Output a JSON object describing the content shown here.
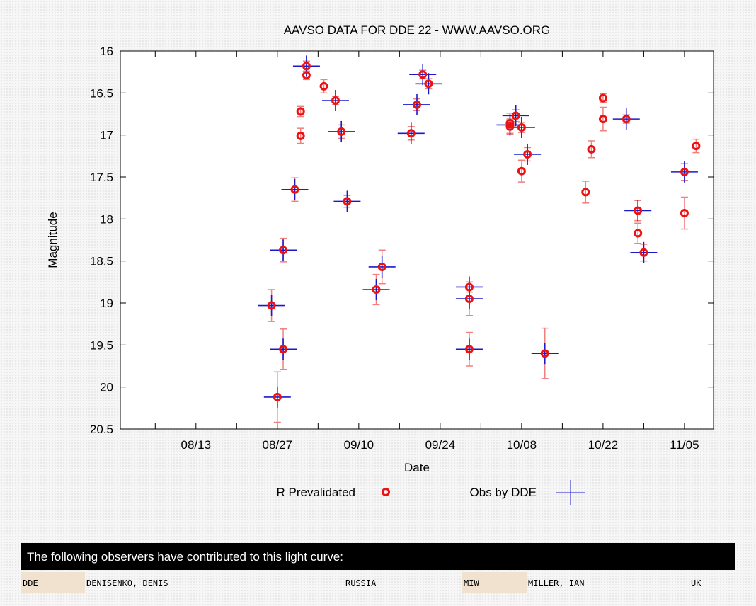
{
  "chart_data": {
    "type": "scatter",
    "title": "AAVSO DATA FOR DDE 22 - WWW.AAVSO.ORG",
    "xlabel": "Date",
    "ylabel": "Magnitude",
    "y_inverted": true,
    "ylim": [
      16,
      20.5
    ],
    "yticks": [
      "16",
      "16.5",
      "17",
      "17.5",
      "18",
      "18.5",
      "19",
      "19.5",
      "20",
      "20.5"
    ],
    "xlim": [
      "2012-07-31",
      "2012-11-10"
    ],
    "xticks": [
      "08/13",
      "08/27",
      "09/10",
      "09/24",
      "10/08",
      "10/22",
      "11/05"
    ],
    "xtick_dates": [
      "2012-08-13",
      "2012-08-27",
      "2012-09-10",
      "2012-09-24",
      "2012-10-08",
      "2012-10-22",
      "2012-11-05"
    ],
    "grid": false,
    "legend": "bottom-center",
    "series": [
      {
        "name": "R Prevalidated",
        "marker": "red-circle",
        "color": "#ee1111",
        "errorbar_color": "#f08080",
        "points": [
          {
            "x": "2012-08-26",
            "y": 19.03,
            "err": 0.19
          },
          {
            "x": "2012-08-27",
            "y": 20.12,
            "err": 0.3
          },
          {
            "x": "2012-08-28",
            "y": 19.55,
            "err": 0.24
          },
          {
            "x": "2012-08-28",
            "y": 18.37,
            "err": 0.14
          },
          {
            "x": "2012-08-30",
            "y": 17.65,
            "err": 0.14
          },
          {
            "x": "2012-08-31",
            "y": 17.01,
            "err": 0.09
          },
          {
            "x": "2012-08-31",
            "y": 16.72,
            "err": 0.06
          },
          {
            "x": "2012-09-01",
            "y": 16.18,
            "err": 0.06
          },
          {
            "x": "2012-09-01",
            "y": 16.29,
            "err": 0.05
          },
          {
            "x": "2012-09-04",
            "y": 16.42,
            "err": 0.08
          },
          {
            "x": "2012-09-06",
            "y": 16.59,
            "err": 0.05
          },
          {
            "x": "2012-09-07",
            "y": 16.96,
            "err": 0.08
          },
          {
            "x": "2012-09-08",
            "y": 17.79,
            "err": 0.07
          },
          {
            "x": "2012-09-13",
            "y": 18.84,
            "err": 0.18
          },
          {
            "x": "2012-09-14",
            "y": 18.57,
            "err": 0.2
          },
          {
            "x": "2012-09-19",
            "y": 16.98,
            "err": 0.08
          },
          {
            "x": "2012-09-20",
            "y": 16.64,
            "err": 0.07
          },
          {
            "x": "2012-09-21",
            "y": 16.28,
            "err": 0.05
          },
          {
            "x": "2012-09-22",
            "y": 16.39,
            "err": 0.06
          },
          {
            "x": "2012-09-29",
            "y": 18.81,
            "err": 0.06
          },
          {
            "x": "2012-09-29",
            "y": 18.95,
            "err": 0.2
          },
          {
            "x": "2012-09-29",
            "y": 19.55,
            "err": 0.2
          },
          {
            "x": "2012-10-06",
            "y": 16.86,
            "err": 0.12
          },
          {
            "x": "2012-10-06",
            "y": 16.9,
            "err": 0.09
          },
          {
            "x": "2012-10-07",
            "y": 16.77,
            "err": 0.07
          },
          {
            "x": "2012-10-08",
            "y": 16.91,
            "err": 0.06
          },
          {
            "x": "2012-10-08",
            "y": 17.43,
            "err": 0.13
          },
          {
            "x": "2012-10-09",
            "y": 17.23,
            "err": 0.08
          },
          {
            "x": "2012-10-12",
            "y": 19.6,
            "err": 0.3
          },
          {
            "x": "2012-10-19",
            "y": 17.68,
            "err": 0.13
          },
          {
            "x": "2012-10-20",
            "y": 17.17,
            "err": 0.1
          },
          {
            "x": "2012-10-22",
            "y": 16.56,
            "err": 0.05
          },
          {
            "x": "2012-10-22",
            "y": 16.81,
            "err": 0.14
          },
          {
            "x": "2012-10-26",
            "y": 16.81,
            "err": 0.05
          },
          {
            "x": "2012-10-28",
            "y": 17.9,
            "err": 0.12
          },
          {
            "x": "2012-10-28",
            "y": 18.17,
            "err": 0.12
          },
          {
            "x": "2012-10-29",
            "y": 18.4,
            "err": 0.1
          },
          {
            "x": "2012-11-05",
            "y": 17.44,
            "err": 0.1
          },
          {
            "x": "2012-11-05",
            "y": 17.93,
            "err": 0.19
          },
          {
            "x": "2012-11-07",
            "y": 17.13,
            "err": 0.08
          }
        ]
      },
      {
        "name": "Obs by DDE",
        "marker": "blue-cross",
        "color": "#1a1acc",
        "points": [
          {
            "x": "2012-08-26",
            "y": 19.03
          },
          {
            "x": "2012-08-27",
            "y": 20.12
          },
          {
            "x": "2012-08-28",
            "y": 19.55
          },
          {
            "x": "2012-08-28",
            "y": 18.37
          },
          {
            "x": "2012-08-30",
            "y": 17.65
          },
          {
            "x": "2012-09-01",
            "y": 16.18
          },
          {
            "x": "2012-09-06",
            "y": 16.59
          },
          {
            "x": "2012-09-07",
            "y": 16.96
          },
          {
            "x": "2012-09-08",
            "y": 17.79
          },
          {
            "x": "2012-09-13",
            "y": 18.84
          },
          {
            "x": "2012-09-14",
            "y": 18.57
          },
          {
            "x": "2012-09-19",
            "y": 16.98
          },
          {
            "x": "2012-09-20",
            "y": 16.64
          },
          {
            "x": "2012-09-21",
            "y": 16.28
          },
          {
            "x": "2012-09-22",
            "y": 16.39
          },
          {
            "x": "2012-09-29",
            "y": 18.81
          },
          {
            "x": "2012-09-29",
            "y": 18.95
          },
          {
            "x": "2012-09-29",
            "y": 19.55
          },
          {
            "x": "2012-10-06",
            "y": 16.88
          },
          {
            "x": "2012-10-07",
            "y": 16.77
          },
          {
            "x": "2012-10-08",
            "y": 16.91
          },
          {
            "x": "2012-10-09",
            "y": 17.23
          },
          {
            "x": "2012-10-12",
            "y": 19.6
          },
          {
            "x": "2012-10-26",
            "y": 16.81
          },
          {
            "x": "2012-10-28",
            "y": 17.9
          },
          {
            "x": "2012-10-29",
            "y": 18.4
          },
          {
            "x": "2012-11-05",
            "y": 17.44
          }
        ]
      }
    ]
  },
  "observers": {
    "header": "The following observers have contributed to this light curve:",
    "entries": [
      {
        "code": "DDE",
        "name": "DENISENKO, DENIS",
        "country": "RUSSIA"
      },
      {
        "code": "MIW",
        "name": "MILLER, IAN",
        "country": "UK"
      }
    ]
  }
}
